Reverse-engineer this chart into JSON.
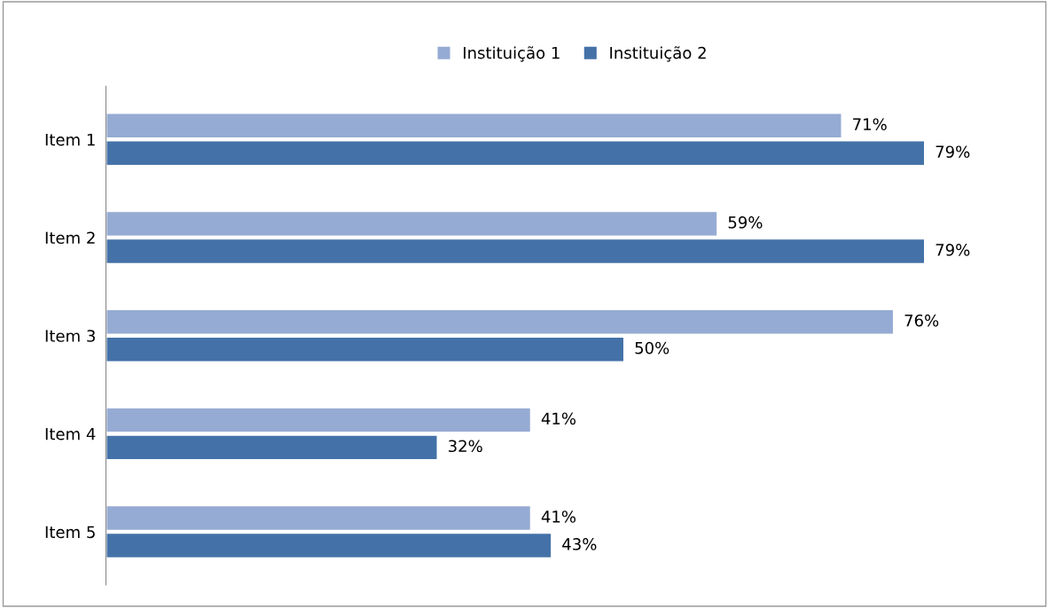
{
  "chart_data": {
    "type": "bar",
    "orientation": "horizontal",
    "tick_labels": "y",
    "data_labels": true,
    "legend": "top",
    "grid": false,
    "categories": [
      "Item 1",
      "Item 2",
      "Item 3",
      "Item 4",
      "Item 5"
    ],
    "series": [
      {
        "name": "Instituição 1",
        "color": "#95abd3",
        "values": [
          71,
          59,
          76,
          41,
          41
        ],
        "value_labels": [
          "71%",
          "59%",
          "76%",
          "41%",
          "41%"
        ]
      },
      {
        "name": "Instituição 2",
        "color": "#4472a8",
        "values": [
          79,
          79,
          50,
          32,
          43
        ],
        "value_labels": [
          "79%",
          "79%",
          "50%",
          "32%",
          "43%"
        ]
      }
    ]
  }
}
